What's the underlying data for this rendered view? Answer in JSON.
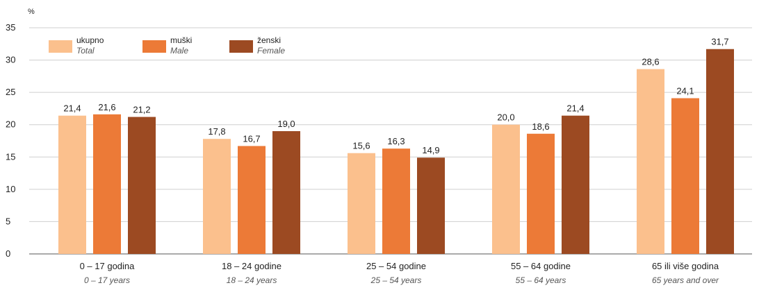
{
  "chart_data": {
    "type": "bar",
    "unit_label": "%",
    "ylim": [
      0,
      35
    ],
    "yticks": [
      0,
      5,
      10,
      15,
      20,
      25,
      30,
      35
    ],
    "grid": true,
    "legend_position": "top-left",
    "categories": [
      {
        "label": "0  – 17 godina",
        "sublabel": "0 – 17 years"
      },
      {
        "label": "18  – 24 godine",
        "sublabel": "18 – 24 years"
      },
      {
        "label": "25  – 54 godine",
        "sublabel": "25 – 54 years"
      },
      {
        "label": "55  – 64 godine",
        "sublabel": "55 – 64 years"
      },
      {
        "label": "65 ili više godina",
        "sublabel": "65 years and over"
      }
    ],
    "series": [
      {
        "name": "ukupno",
        "name_en": "Total",
        "color": "#fbc08d",
        "values": [
          21.4,
          17.8,
          15.6,
          20.0,
          28.6
        ],
        "value_labels": [
          "21,4",
          "17,8",
          "15,6",
          "20,0",
          "28,6"
        ]
      },
      {
        "name": "muški",
        "name_en": "Male",
        "color": "#ec7a37",
        "values": [
          21.6,
          16.7,
          16.3,
          18.6,
          24.1
        ],
        "value_labels": [
          "21,6",
          "16,7",
          "16,3",
          "18,6",
          "24,1"
        ]
      },
      {
        "name": "ženski",
        "name_en": "Female",
        "color": "#9c4a22",
        "values": [
          21.2,
          19.0,
          14.9,
          21.4,
          31.7
        ],
        "value_labels": [
          "21,2",
          "19,0",
          "14,9",
          "21,4",
          "31,7"
        ]
      }
    ]
  }
}
